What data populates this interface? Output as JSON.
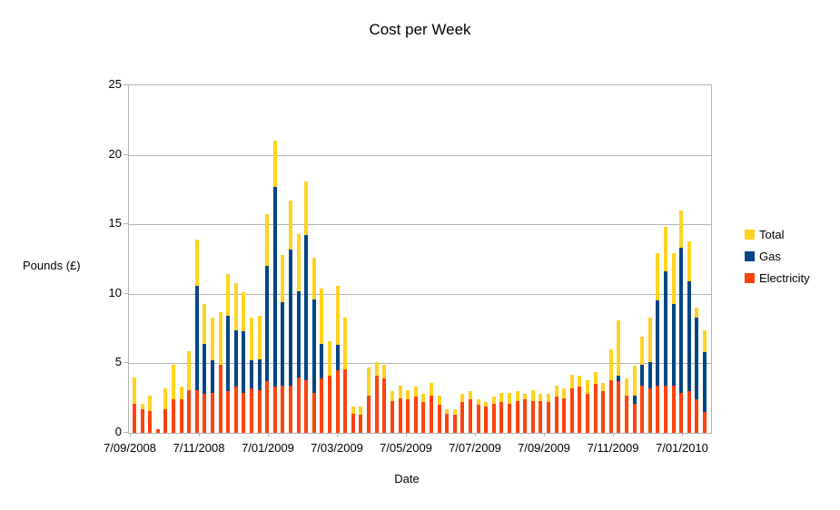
{
  "title": "Cost per Week",
  "axes": {
    "y_label": "Pounds (£)",
    "x_label": "Date",
    "y_ticks": [
      "25",
      "20",
      "15",
      "10",
      "5",
      "0"
    ],
    "x_tick_labels": [
      "7/09/2008",
      "7/11/2008",
      "7/01/2009",
      "7/03/2009",
      "7/05/2009",
      "7/07/2009",
      "7/09/2009",
      "7/11/2009",
      "7/01/2010"
    ]
  },
  "legend": {
    "items": [
      {
        "label": "Total",
        "color": "#FFD320"
      },
      {
        "label": "Gas",
        "color": "#004586"
      },
      {
        "label": "Electricity",
        "color": "#FF420E"
      }
    ]
  },
  "colors": {
    "total": "#FFD320",
    "gas": "#004586",
    "electricity": "#FF420E",
    "grid": "#b3b3b3",
    "text": "#000000",
    "background": "#ffffff"
  },
  "chart_data": {
    "type": "bar",
    "mode": "overlapped-bars (Total drawn behind, Gas over it, Electricity in front; weekly bars)",
    "title": "Cost per Week",
    "xlabel": "Date",
    "ylabel": "Pounds (£)",
    "ylim": [
      0,
      25
    ],
    "grid": true,
    "legend_position": "right",
    "n_bars": 74,
    "x_tick_labels": [
      "7/09/2008",
      "7/11/2008",
      "7/01/2009",
      "7/03/2009",
      "7/05/2009",
      "7/07/2009",
      "7/09/2009",
      "7/11/2009",
      "7/01/2010"
    ],
    "series": [
      {
        "name": "Total",
        "color": "#FFD320",
        "values": [
          4.0,
          2.1,
          2.7,
          0.25,
          3.2,
          4.9,
          3.3,
          5.9,
          13.9,
          9.3,
          8.3,
          8.7,
          11.4,
          10.8,
          10.1,
          8.3,
          8.4,
          15.7,
          21.0,
          12.8,
          16.7,
          14.3,
          18.1,
          12.6,
          10.4,
          6.6,
          10.6,
          8.3,
          1.9,
          1.9,
          4.7,
          5.1,
          4.9,
          3.0,
          3.4,
          3.1,
          3.3,
          2.8,
          3.6,
          2.7,
          1.7,
          1.7,
          2.8,
          3.0,
          2.4,
          2.2,
          2.6,
          2.9,
          2.9,
          3.0,
          2.8,
          3.1,
          2.8,
          2.8,
          3.4,
          3.2,
          4.2,
          4.1,
          3.8,
          4.4,
          3.6,
          6.0,
          8.1,
          3.9,
          4.8,
          6.9,
          8.3,
          12.9,
          14.8,
          12.9,
          16.0,
          13.8,
          9.0,
          7.4
        ]
      },
      {
        "name": "Gas",
        "color": "#004586",
        "values": [
          1.9,
          0.4,
          1.1,
          0.0,
          1.5,
          2.4,
          0.9,
          2.8,
          10.6,
          6.4,
          5.2,
          3.8,
          8.4,
          7.4,
          7.3,
          5.2,
          5.3,
          12.0,
          17.7,
          9.4,
          13.2,
          10.2,
          14.2,
          9.6,
          6.4,
          2.5,
          6.3,
          3.7,
          0.5,
          0.6,
          2.0,
          1.0,
          1.0,
          0.7,
          0.9,
          0.7,
          0.7,
          0.6,
          0.9,
          0.7,
          0.3,
          0.4,
          0.6,
          0.6,
          0.4,
          0.3,
          0.5,
          0.7,
          0.8,
          0.7,
          0.4,
          0.8,
          0.5,
          0.6,
          0.8,
          0.7,
          1.0,
          0.8,
          1.0,
          0.9,
          0.6,
          2.2,
          4.1,
          1.2,
          2.7,
          4.9,
          5.1,
          9.5,
          11.6,
          9.3,
          13.3,
          10.9,
          8.3,
          5.8
        ]
      },
      {
        "name": "Electricity",
        "color": "#FF420E",
        "values": [
          2.1,
          1.7,
          1.6,
          0.25,
          1.7,
          2.4,
          2.4,
          3.1,
          3.1,
          2.8,
          2.9,
          4.9,
          3.0,
          3.3,
          2.9,
          3.2,
          3.1,
          3.7,
          3.3,
          3.4,
          3.4,
          4.0,
          3.8,
          2.9,
          3.9,
          4.1,
          4.5,
          4.6,
          1.4,
          1.3,
          2.7,
          4.1,
          3.9,
          2.3,
          2.5,
          2.4,
          2.6,
          2.2,
          2.7,
          2.0,
          1.4,
          1.3,
          2.2,
          2.4,
          2.0,
          1.9,
          2.1,
          2.2,
          2.1,
          2.3,
          2.4,
          2.3,
          2.3,
          2.2,
          2.6,
          2.5,
          3.2,
          3.3,
          2.8,
          3.5,
          3.0,
          3.8,
          3.7,
          2.7,
          2.1,
          3.4,
          3.2,
          3.4,
          3.4,
          3.4,
          2.9,
          3.0,
          2.4,
          1.5
        ]
      }
    ]
  }
}
